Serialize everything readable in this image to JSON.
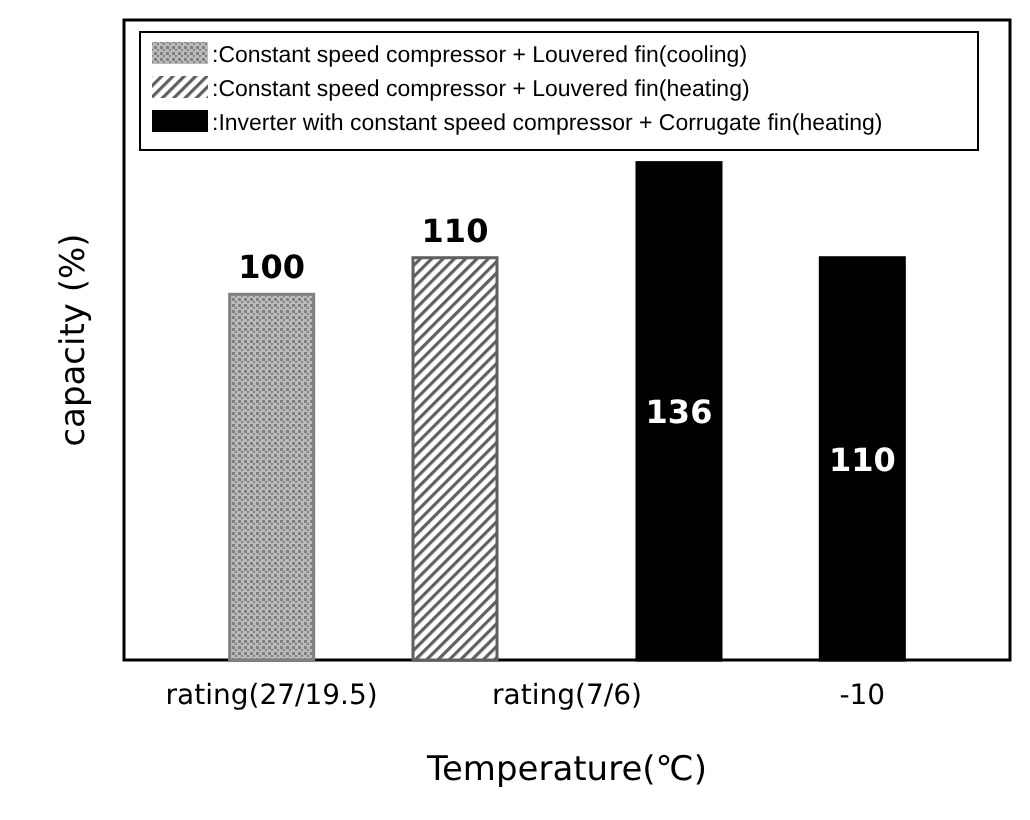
{
  "chart_data": {
    "type": "bar",
    "xlabel": "Temperature(℃)",
    "ylabel": "capacity (%)",
    "categories": [
      "rating(27/19.5)",
      "rating(7/6)",
      "-10"
    ],
    "series": [
      {
        "name": ":Constant speed compressor + Louvered fin(cooling)",
        "color": "#808080",
        "values": [
          100,
          null,
          null
        ]
      },
      {
        "name": ":Constant speed compressor + Louvered fin(heating)",
        "color": "#606060",
        "values": [
          null,
          110,
          null
        ]
      },
      {
        "name": ":Inverter with constant speed compressor + Corrugate fin(heating)",
        "color": "#000000",
        "values": [
          null,
          136,
          110
        ]
      }
    ],
    "ylim": [
      0,
      175
    ],
    "data_labels": true,
    "legend": "top",
    "grid": false
  }
}
